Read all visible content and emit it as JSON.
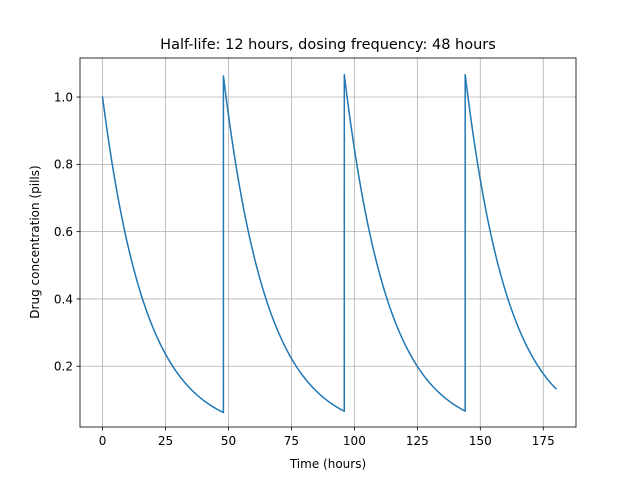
{
  "chart_data": {
    "type": "line",
    "title": "Half-life: 12 hours, dosing frequency: 48 hours",
    "xlabel": "Time (hours)",
    "ylabel": "Drug concentration (pills)",
    "xlim": [
      -8.95,
      188
    ],
    "ylim": [
      0.0195,
      1.116
    ],
    "x_ticks": [
      {
        "value": 0,
        "label": "0"
      },
      {
        "value": 25,
        "label": "25"
      },
      {
        "value": 50,
        "label": "50"
      },
      {
        "value": 75,
        "label": "75"
      },
      {
        "value": 100,
        "label": "100"
      },
      {
        "value": 125,
        "label": "125"
      },
      {
        "value": 150,
        "label": "150"
      },
      {
        "value": 175,
        "label": "175"
      }
    ],
    "y_ticks": [
      {
        "value": 0.2,
        "label": "0.2"
      },
      {
        "value": 0.4,
        "label": "0.4"
      },
      {
        "value": 0.6,
        "label": "0.6"
      },
      {
        "value": 0.8,
        "label": "0.8"
      },
      {
        "value": 1.0,
        "label": "1.0"
      }
    ],
    "grid": true,
    "line_color": "#1f77b4",
    "series": [
      {
        "x": [
          0,
          6,
          12,
          18,
          24,
          30,
          36,
          42,
          47.99,
          48,
          54,
          60,
          66,
          72,
          78,
          84,
          90,
          95.99,
          96,
          102,
          108,
          114,
          120,
          126,
          132,
          138,
          143.99,
          144,
          150,
          156,
          162,
          168,
          174,
          180
        ],
        "values": [
          1.0,
          0.7071,
          0.5,
          0.3536,
          0.25,
          0.1768,
          0.125,
          0.0884,
          0.0625,
          1.0625,
          0.7513,
          0.5313,
          0.3756,
          0.2656,
          0.1878,
          0.1328,
          0.0939,
          0.0664,
          1.0664,
          0.7541,
          0.5332,
          0.377,
          0.2666,
          0.1885,
          0.1333,
          0.0943,
          0.0666,
          1.0666,
          0.7542,
          0.5333,
          0.3771,
          0.2667,
          0.1886,
          0.1333
        ]
      }
    ]
  }
}
